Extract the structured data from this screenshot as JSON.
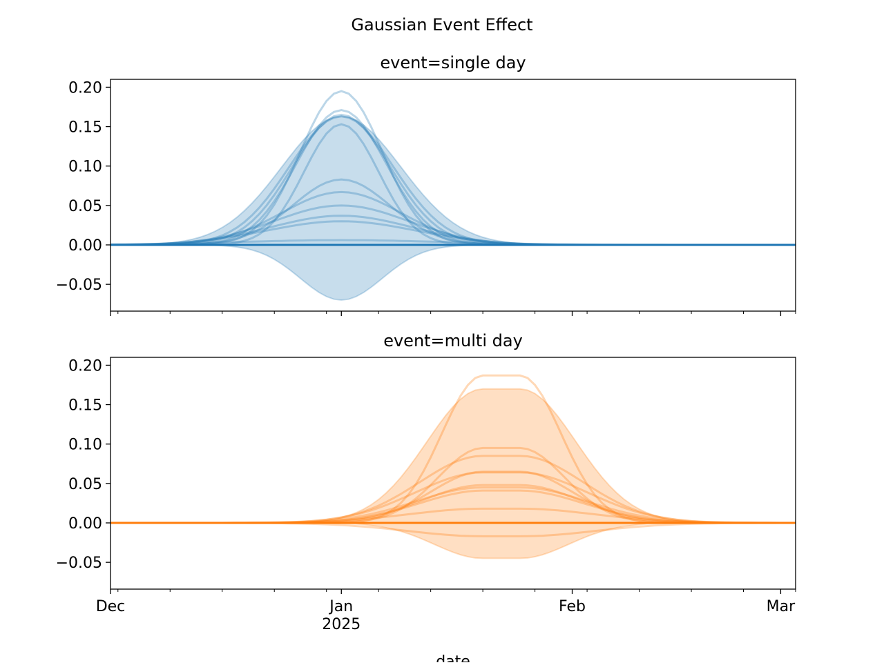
{
  "chart_data": {
    "title": "Gaussian Event Effect",
    "xlabel": "date",
    "type": "line",
    "xlim": [
      "2024-12-01",
      "2025-03-03"
    ],
    "ylim": [
      -0.084,
      0.21
    ],
    "yticks": [
      -0.05,
      0.0,
      0.05,
      0.1,
      0.15,
      0.2
    ],
    "ytick_labels": [
      "−0.05",
      "0.00",
      "0.05",
      "0.10",
      "0.15",
      "0.20"
    ],
    "xticks": [
      {
        "date": "2024-12-01",
        "label": "Dec",
        "sublabel": ""
      },
      {
        "date": "2025-01-01",
        "label": "Jan",
        "sublabel": "2025"
      },
      {
        "date": "2025-02-01",
        "label": "Feb",
        "sublabel": ""
      },
      {
        "date": "2025-03-01",
        "label": "Mar",
        "sublabel": ""
      }
    ],
    "minor_ticks": "weekly (Mondays)",
    "grid": false,
    "panels": [
      {
        "title": "event=single day",
        "color": "#1f77b4",
        "event_start": "2025-01-01",
        "event_end": "2025-01-01",
        "band": {
          "upper_peak": 0.163,
          "upper_sigma_days": 8,
          "lower_peak": -0.07,
          "lower_sigma_days": 5.5
        },
        "lines": [
          {
            "peak": 0.195,
            "sigma_days": 5.5
          },
          {
            "peak": 0.171,
            "sigma_days": 6
          },
          {
            "peak": 0.165,
            "sigma_days": 6.5
          },
          {
            "peak": 0.163,
            "sigma_days": 7
          },
          {
            "peak": 0.153,
            "sigma_days": 5
          },
          {
            "peak": 0.083,
            "sigma_days": 6.5
          },
          {
            "peak": 0.067,
            "sigma_days": 8
          },
          {
            "peak": 0.05,
            "sigma_days": 9
          },
          {
            "peak": 0.037,
            "sigma_days": 9.5
          },
          {
            "peak": 0.03,
            "sigma_days": 10
          },
          {
            "peak": 0.006,
            "sigma_days": 14
          }
        ]
      },
      {
        "title": "event=multi day",
        "color": "#ff7f0e",
        "event_start": "2025-01-20",
        "event_end": "2025-01-25",
        "band": {
          "upper_peak": 0.17,
          "upper_sigma_days": 7.5,
          "lower_peak": -0.045,
          "lower_sigma_days": 6.5
        },
        "lines": [
          {
            "peak": 0.187,
            "sigma_days": 5.5
          },
          {
            "peak": 0.095,
            "sigma_days": 6
          },
          {
            "peak": 0.085,
            "sigma_days": 8.5
          },
          {
            "peak": 0.065,
            "sigma_days": 7
          },
          {
            "peak": 0.064,
            "sigma_days": 9
          },
          {
            "peak": 0.048,
            "sigma_days": 8
          },
          {
            "peak": 0.045,
            "sigma_days": 9
          },
          {
            "peak": 0.041,
            "sigma_days": 8.5
          },
          {
            "peak": 0.018,
            "sigma_days": 10
          },
          {
            "peak": -0.017,
            "sigma_days": 10
          }
        ]
      }
    ]
  }
}
